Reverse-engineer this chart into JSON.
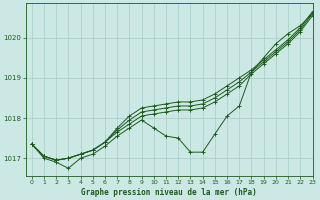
{
  "title": "Graphe pression niveau de la mer (hPa)",
  "bg_color": "#cce8e4",
  "grid_color": "#a8ccc8",
  "line_color": "#1a5c1a",
  "xlim": [
    -0.5,
    23
  ],
  "ylim": [
    1016.55,
    1020.85
  ],
  "yticks": [
    1017,
    1018,
    1019,
    1020
  ],
  "xticks": [
    0,
    1,
    2,
    3,
    4,
    5,
    6,
    7,
    8,
    9,
    10,
    11,
    12,
    13,
    14,
    15,
    16,
    17,
    18,
    19,
    20,
    21,
    22,
    23
  ],
  "series": [
    [
      1017.35,
      1017.0,
      1016.9,
      1016.75,
      1017.0,
      1017.1,
      1017.3,
      1017.55,
      1017.75,
      1017.95,
      1017.75,
      1017.55,
      1017.5,
      1017.15,
      1017.15,
      1017.6,
      1018.05,
      1018.3,
      1019.15,
      1019.5,
      1019.85,
      1020.1,
      1020.3,
      1020.6
    ],
    [
      1017.35,
      1017.05,
      1016.95,
      1017.0,
      1017.1,
      1017.2,
      1017.4,
      1017.65,
      1017.85,
      1018.05,
      1018.1,
      1018.15,
      1018.2,
      1018.2,
      1018.25,
      1018.4,
      1018.6,
      1018.8,
      1019.1,
      1019.35,
      1019.6,
      1019.85,
      1020.15,
      1020.55
    ],
    [
      1017.35,
      1017.05,
      1016.95,
      1017.0,
      1017.1,
      1017.2,
      1017.4,
      1017.7,
      1017.95,
      1018.15,
      1018.2,
      1018.25,
      1018.3,
      1018.3,
      1018.35,
      1018.5,
      1018.7,
      1018.9,
      1019.15,
      1019.4,
      1019.65,
      1019.9,
      1020.2,
      1020.6
    ],
    [
      1017.35,
      1017.05,
      1016.95,
      1017.0,
      1017.1,
      1017.2,
      1017.4,
      1017.75,
      1018.05,
      1018.25,
      1018.3,
      1018.35,
      1018.4,
      1018.4,
      1018.45,
      1018.6,
      1018.8,
      1019.0,
      1019.2,
      1019.45,
      1019.7,
      1019.95,
      1020.25,
      1020.65
    ]
  ]
}
